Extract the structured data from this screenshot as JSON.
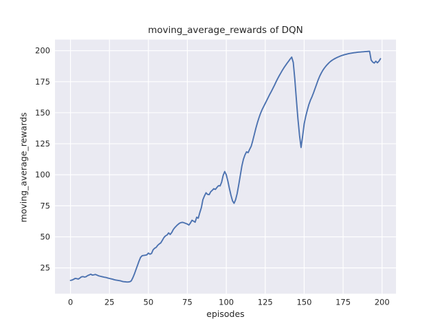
{
  "chart_data": {
    "type": "line",
    "title": "moving_average_rewards of DQN",
    "xlabel": "episodes",
    "ylabel": "moving_average_rewards",
    "x_ticks": [
      0,
      25,
      50,
      75,
      100,
      125,
      150,
      175,
      200
    ],
    "y_ticks": [
      25,
      50,
      75,
      100,
      125,
      150,
      175,
      200
    ],
    "xlim": [
      -9.95,
      208.95
    ],
    "ylim": [
      4.2,
      208.9
    ],
    "grid": true,
    "legend": "none",
    "plot_bg_color": "#EAEAF2",
    "grid_color": "#FFFFFF",
    "line_color": "#4C72B0",
    "text_color": "#262626",
    "series": [
      {
        "name": "moving_average_rewards",
        "x_start": 0,
        "x_step": 1,
        "values": [
          14.9,
          15.2,
          15.8,
          16.5,
          16.3,
          16.0,
          16.8,
          17.8,
          18.0,
          17.6,
          17.9,
          18.8,
          19.3,
          19.9,
          19.2,
          19.4,
          19.7,
          19.2,
          18.6,
          18.3,
          18.0,
          17.7,
          17.4,
          17.2,
          16.8,
          16.5,
          16.2,
          15.9,
          15.5,
          15.2,
          15.0,
          14.8,
          14.6,
          14.2,
          13.9,
          13.8,
          13.6,
          13.6,
          13.8,
          14.5,
          17.0,
          20.0,
          23.5,
          27.0,
          30.5,
          33.5,
          34.8,
          35.0,
          35.2,
          35.5,
          36.9,
          36.0,
          36.6,
          39.5,
          40.8,
          41.5,
          43.2,
          44.3,
          45.2,
          47.3,
          49.5,
          50.8,
          51.5,
          53.2,
          51.9,
          53.5,
          55.9,
          57.5,
          58.8,
          60.0,
          61.0,
          61.5,
          61.7,
          61.3,
          60.8,
          60.3,
          59.5,
          61.2,
          63.4,
          62.6,
          61.8,
          65.8,
          65.0,
          69.5,
          73.5,
          80.0,
          83.0,
          85.5,
          84.2,
          84.0,
          86.3,
          87.5,
          88.8,
          88.2,
          89.8,
          91.2,
          91.0,
          94.0,
          99.5,
          102.6,
          100.0,
          95.0,
          89.0,
          83.5,
          79.0,
          77.0,
          80.0,
          85.0,
          92.0,
          99.5,
          107.0,
          112.5,
          116.0,
          118.5,
          117.8,
          120.5,
          123.0,
          127.5,
          132.5,
          137.5,
          142.0,
          146.0,
          149.5,
          152.5,
          155.0,
          157.5,
          160.0,
          162.5,
          165.0,
          167.3,
          169.8,
          172.3,
          175.0,
          177.5,
          179.8,
          182.0,
          184.2,
          186.2,
          188.0,
          189.8,
          191.5,
          193.2,
          194.8,
          190.5,
          177.0,
          160.5,
          145.0,
          132.0,
          122.0,
          131.0,
          141.0,
          147.0,
          152.0,
          156.5,
          160.0,
          162.8,
          166.0,
          169.5,
          173.0,
          176.5,
          179.5,
          182.0,
          184.2,
          186.0,
          187.6,
          189.0,
          190.3,
          191.4,
          192.3,
          193.1,
          193.8,
          194.4,
          195.0,
          195.5,
          196.0,
          196.4,
          196.8,
          197.1,
          197.4,
          197.7,
          197.9,
          198.1,
          198.3,
          198.5,
          198.7,
          198.8,
          198.9,
          199.0,
          199.1,
          199.2,
          199.3,
          199.4,
          199.5,
          192.4,
          190.8,
          190.0,
          191.5,
          190.2,
          191.5,
          193.5
        ]
      }
    ]
  }
}
